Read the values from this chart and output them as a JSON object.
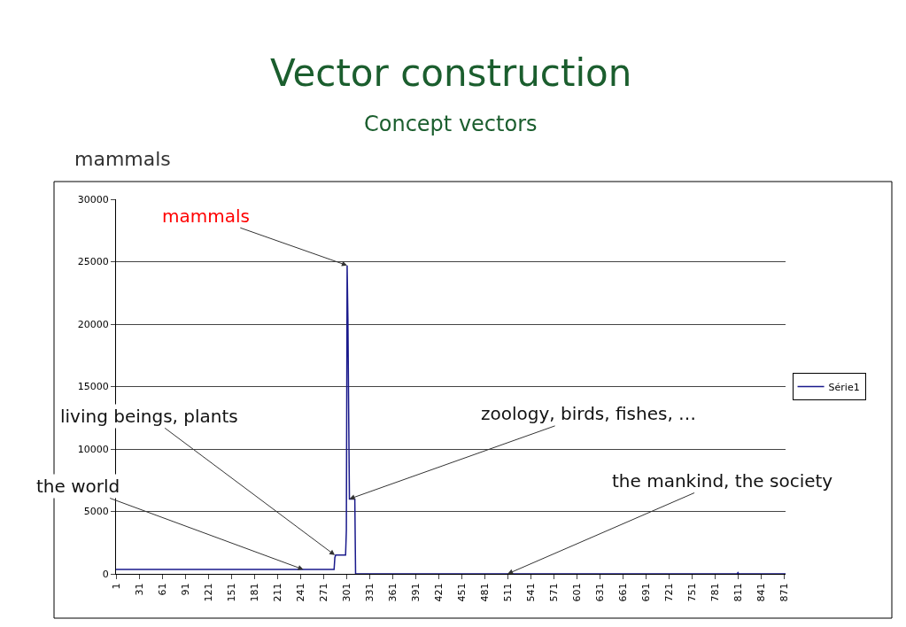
{
  "chart_data": {
    "type": "line",
    "title": "Vector construction",
    "subtitle": "Concept vectors",
    "x": [
      1,
      285,
      286,
      287,
      300,
      301,
      302,
      303,
      304,
      305,
      312,
      313,
      810,
      811,
      812,
      873
    ],
    "series": [
      {
        "name": "Série1",
        "color": "#1a1a8c",
        "values": [
          350,
          350,
          1300,
          1500,
          1500,
          3500,
          24700,
          20500,
          13000,
          6000,
          6000,
          0,
          0,
          100,
          0,
          0
        ]
      }
    ],
    "xlim": [
      1,
      873
    ],
    "xticks": [
      1,
      31,
      61,
      91,
      121,
      151,
      181,
      211,
      241,
      271,
      301,
      331,
      361,
      391,
      421,
      451,
      481,
      511,
      541,
      571,
      601,
      631,
      661,
      691,
      721,
      751,
      781,
      811,
      841,
      871
    ],
    "ylim": [
      0,
      30000
    ],
    "yticks": [
      0,
      5000,
      10000,
      15000,
      20000,
      25000,
      30000
    ],
    "grid": "y",
    "legend": "right",
    "marker": "none",
    "line_style": "solid",
    "annotations": [
      "mammals",
      {
        "text": "mammals",
        "x": 302,
        "y": 24700
      },
      {
        "text": "living beings, plants",
        "x": 286,
        "y": 1500
      },
      {
        "text": "the world",
        "x": 245,
        "y": 350
      },
      {
        "text": "zoology, birds, fishes, …",
        "x": 305,
        "y": 6000
      },
      {
        "text": "the mankind, the society",
        "x": 511,
        "y": 0
      }
    ]
  }
}
